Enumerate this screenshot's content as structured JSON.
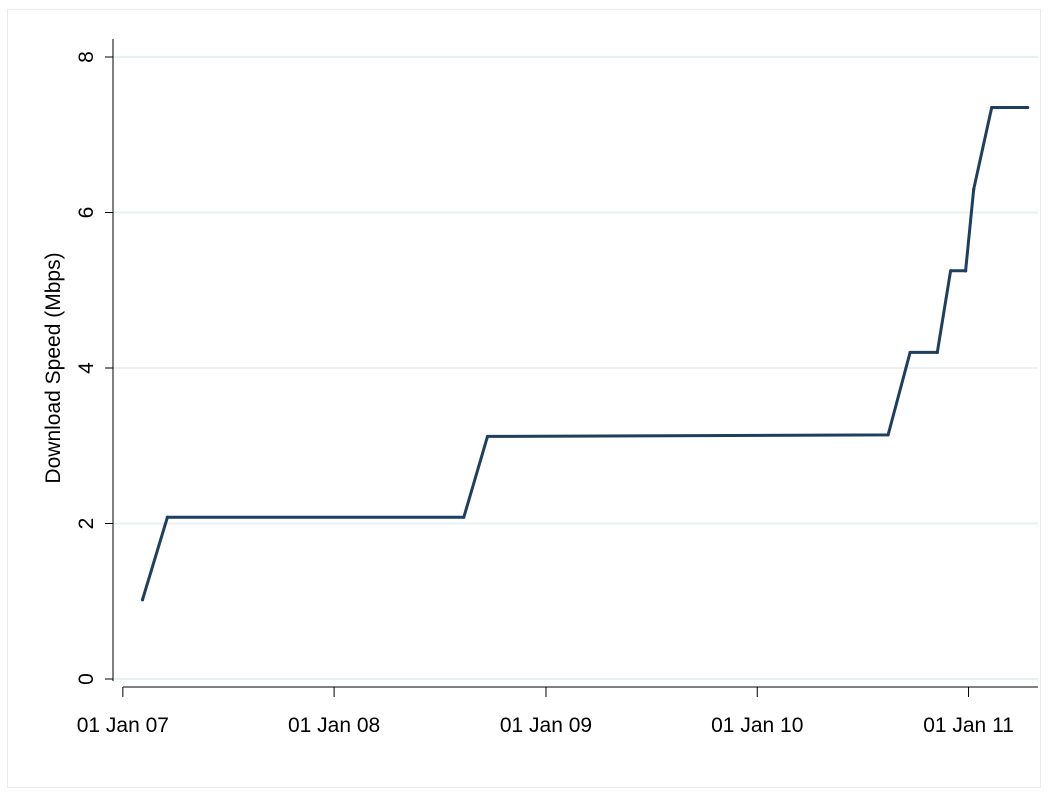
{
  "chart_data": {
    "type": "line",
    "title": "",
    "xlabel": "",
    "ylabel": "Download Speed (Mbps)",
    "xlim": [
      "2006-12-15",
      "2011-05-01"
    ],
    "ylim": [
      0,
      8
    ],
    "grid": true,
    "x_ticks": [
      "01 Jan 07",
      "01 Jan 08",
      "01 Jan 09",
      "01 Jan 10",
      "01 Jan 11"
    ],
    "x_tick_dates": [
      "2007-01-01",
      "2008-01-01",
      "2009-01-01",
      "2010-01-01",
      "2011-01-01"
    ],
    "y_ticks": [
      0,
      2,
      4,
      6,
      8
    ],
    "y_tick_labels": [
      "0",
      "2",
      "4",
      "6",
      "8"
    ],
    "series": [
      {
        "color": "#1f3f5f",
        "x": [
          "2007-02-04",
          "2007-03-19",
          "2008-08-12",
          "2008-09-22",
          "2010-08-15",
          "2010-09-22",
          "2010-11-08",
          "2010-12-01",
          "2010-12-27",
          "2011-01-10",
          "2011-02-10",
          "2011-04-13"
        ],
        "y": [
          1.02,
          2.08,
          2.08,
          3.12,
          3.14,
          4.2,
          4.2,
          5.25,
          5.25,
          6.3,
          7.35,
          7.35
        ]
      }
    ]
  }
}
